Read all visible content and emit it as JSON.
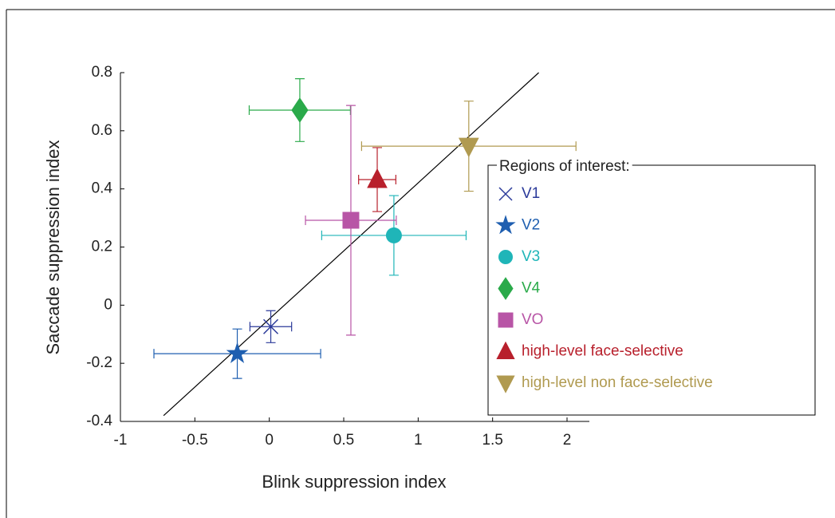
{
  "chart_data": {
    "type": "scatter",
    "x_label": "Blink suppression index",
    "y_label": "Saccade suppression index",
    "xlim": [
      -1,
      2.15
    ],
    "ylim": [
      -0.4,
      0.8
    ],
    "xticks": [
      -1,
      -0.5,
      0,
      0.5,
      1,
      1.5,
      2
    ],
    "yticks": [
      -0.4,
      -0.2,
      0,
      0.2,
      0.4,
      0.6,
      0.8
    ],
    "reference_line": {
      "x": [
        -0.71,
        1.81
      ],
      "y": [
        -0.38,
        0.8
      ],
      "color": "#000000"
    },
    "legend_title": "Regions of interest:",
    "legend_position": "right",
    "series": [
      {
        "name": "V1",
        "color": "#2b3a9a",
        "marker": "x",
        "x": [
          0.01
        ],
        "y": [
          -0.074
        ],
        "xerr": [
          0.14
        ],
        "yerr": [
          0.055
        ]
      },
      {
        "name": "V2",
        "color": "#1f5fb0",
        "marker": "star",
        "x": [
          -0.215
        ],
        "y": [
          -0.167
        ],
        "xerr": [
          0.56
        ],
        "yerr": [
          0.085
        ]
      },
      {
        "name": "V3",
        "color": "#1fb5b8",
        "marker": "circle",
        "x": [
          0.837
        ],
        "y": [
          0.24
        ],
        "xerr": [
          0.485
        ],
        "yerr": [
          0.137
        ]
      },
      {
        "name": "V4",
        "color": "#2aaa4a",
        "marker": "diamond",
        "x": [
          0.205
        ],
        "y": [
          0.671
        ],
        "xerr": [
          0.34
        ],
        "yerr": [
          0.108
        ]
      },
      {
        "name": "VO",
        "color": "#b855a6",
        "marker": "square",
        "x": [
          0.548
        ],
        "y": [
          0.292
        ],
        "xerr": [
          0.305
        ],
        "yerr": [
          0.395
        ]
      },
      {
        "name": "high-level face-selective",
        "color": "#b8202c",
        "marker": "triangle-up",
        "x": [
          0.725
        ],
        "y": [
          0.432
        ],
        "xerr": [
          0.125
        ],
        "yerr": [
          0.11
        ]
      },
      {
        "name": "high-level non face-selective",
        "color": "#b09a50",
        "marker": "triangle-down",
        "x": [
          1.34
        ],
        "y": [
          0.547
        ],
        "xerr": [
          0.72
        ],
        "yerr": [
          0.155
        ]
      }
    ]
  }
}
